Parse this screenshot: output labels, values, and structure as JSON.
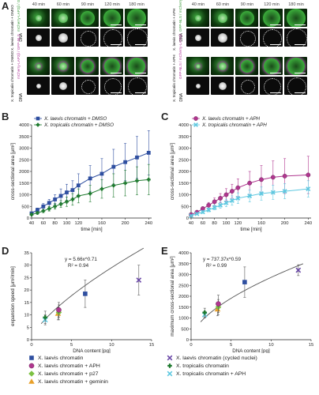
{
  "panel_labels": {
    "a": "A",
    "b": "B",
    "c": "C",
    "d": "D",
    "e": "E"
  },
  "panelA": {
    "time_labels": [
      "40 min",
      "60 min",
      "90 min",
      "120 min",
      "180 min"
    ],
    "left_rows": [
      {
        "label": "X. laevis chromatin + DMSO",
        "channels": "mCherry-LAP2β / GFP-NLS"
      },
      {
        "label": "X. tropicalis chromatin + DMSO",
        "channels": "mCherry-LAP2β / GFP-NLS"
      }
    ],
    "right_rows": [
      {
        "label": "X. laevis chromatin + APH",
        "channels": "GFP-NLS / mCherry-LAP2β"
      },
      {
        "label": "X. tropicalis chromatin + APH",
        "channels": "GFP-NLS / mCherry-LAP2β"
      }
    ],
    "dna_label": "DNA"
  },
  "chart_data": [
    {
      "id": "B",
      "type": "line",
      "xlabel": "time [min]",
      "ylabel": "cross-sectional area [μm²]",
      "xlim": [
        40,
        245
      ],
      "ylim": [
        0,
        4000
      ],
      "xticks": [
        40,
        60,
        80,
        100,
        120,
        160,
        200,
        240
      ],
      "yticks": [
        0,
        500,
        1000,
        1500,
        2000,
        2500,
        3000,
        3500,
        4000
      ],
      "series": [
        {
          "name": "X. laevis chromatin + DMSO",
          "color": "#2f4fa0",
          "marker": "square",
          "x": [
            40,
            50,
            60,
            70,
            80,
            90,
            100,
            110,
            120,
            140,
            160,
            180,
            200,
            220,
            240
          ],
          "y": [
            200,
            350,
            500,
            650,
            800,
            950,
            1100,
            1200,
            1400,
            1700,
            1900,
            2200,
            2400,
            2600,
            2800
          ],
          "err": [
            60,
            80,
            120,
            150,
            200,
            300,
            350,
            400,
            500,
            550,
            650,
            750,
            800,
            900,
            950
          ]
        },
        {
          "name": "X. tropicalis chromatin + DMSO",
          "color": "#1f7a2f",
          "marker": "cross",
          "x": [
            40,
            50,
            60,
            70,
            80,
            90,
            100,
            110,
            120,
            140,
            160,
            180,
            200,
            220,
            240
          ],
          "y": [
            150,
            220,
            300,
            400,
            500,
            600,
            700,
            800,
            950,
            1050,
            1250,
            1400,
            1500,
            1600,
            1650
          ],
          "err": [
            40,
            50,
            70,
            100,
            120,
            150,
            200,
            250,
            300,
            350,
            400,
            500,
            550,
            600,
            650
          ]
        }
      ]
    },
    {
      "id": "C",
      "type": "line",
      "xlabel": "time [min]",
      "ylabel": "cross-sectional area [μm²]",
      "xlim": [
        40,
        245
      ],
      "ylim": [
        0,
        4000
      ],
      "xticks": [
        40,
        60,
        80,
        100,
        120,
        160,
        200,
        240
      ],
      "yticks": [
        0,
        500,
        1000,
        1500,
        2000,
        2500,
        3000,
        3500,
        4000
      ],
      "series": [
        {
          "name": "X. laevis chromatin + APH",
          "color": "#b0368f",
          "marker": "circle",
          "x": [
            40,
            50,
            60,
            70,
            80,
            90,
            100,
            110,
            120,
            140,
            160,
            180,
            200,
            240
          ],
          "y": [
            150,
            250,
            400,
            550,
            700,
            850,
            1000,
            1150,
            1300,
            1500,
            1650,
            1750,
            1800,
            1850
          ],
          "err": [
            40,
            60,
            90,
            120,
            160,
            200,
            260,
            300,
            380,
            500,
            600,
            700,
            750,
            800
          ]
        },
        {
          "name": "X. tropicalis chromatin + APH",
          "color": "#5ec8e0",
          "marker": "x",
          "x": [
            40,
            50,
            60,
            70,
            80,
            90,
            100,
            110,
            120,
            140,
            160,
            180,
            200,
            240
          ],
          "y": [
            100,
            180,
            260,
            350,
            450,
            550,
            650,
            750,
            850,
            950,
            1050,
            1100,
            1150,
            1250
          ],
          "err": [
            30,
            40,
            60,
            80,
            100,
            130,
            160,
            200,
            230,
            260,
            280,
            300,
            320,
            350
          ]
        }
      ]
    },
    {
      "id": "D",
      "type": "scatter",
      "xlabel": "DNA content [pg]",
      "ylabel": "expansion speed [μm²/min]",
      "xlim": [
        0,
        15
      ],
      "ylim": [
        0,
        35
      ],
      "xticks": [
        0,
        5,
        10,
        15
      ],
      "yticks": [
        0,
        5,
        10,
        15,
        20,
        25,
        30,
        35
      ],
      "equation": "y = 5.66x^0.71",
      "r2": "R² = 0.94",
      "fit": {
        "a": 5.66,
        "b": 0.71
      },
      "points": [
        {
          "series": "X. tropicalis chromatin + APH",
          "x": 1.7,
          "y": 8.0,
          "err": 2.0,
          "marker": "x",
          "color": "#5ec8e0"
        },
        {
          "series": "X. tropicalis chromatin",
          "x": 1.7,
          "y": 9.0,
          "err": 2.5,
          "marker": "cross",
          "color": "#1f7a2f"
        },
        {
          "series": "X. laevis chromatin + geminin",
          "x": 3.3,
          "y": 10.5,
          "err": 2.5,
          "marker": "triangle",
          "color": "#e8a02a"
        },
        {
          "series": "X. laevis chromatin + p27",
          "x": 3.4,
          "y": 11.0,
          "err": 3.0,
          "marker": "diamond",
          "color": "#7cc142"
        },
        {
          "series": "X. laevis chromatin + APH",
          "x": 3.4,
          "y": 12.0,
          "err": 3.0,
          "marker": "circle",
          "color": "#b0368f"
        },
        {
          "series": "X. laevis chromatin",
          "x": 6.7,
          "y": 18.5,
          "err": 5.5,
          "marker": "square",
          "color": "#2f4fa0"
        },
        {
          "series": "X. laevis chromatin (cycled nuclei)",
          "x": 13.4,
          "y": 24.0,
          "err": 6.0,
          "marker": "x",
          "color": "#6b49a8"
        }
      ]
    },
    {
      "id": "E",
      "type": "scatter",
      "xlabel": "DNA content [pg]",
      "ylabel": "maximum cross-sectional area [μm²]",
      "xlim": [
        0,
        15
      ],
      "ylim": [
        0,
        4000
      ],
      "xticks": [
        0,
        5,
        10,
        15
      ],
      "yticks": [
        0,
        500,
        1000,
        1500,
        2000,
        2500,
        3000,
        3500,
        4000
      ],
      "equation": "y = 737.37x^0.59",
      "r2": "R² = 0.99",
      "fit": {
        "a": 737.37,
        "b": 0.59
      },
      "points": [
        {
          "series": "X. tropicalis chromatin + APH",
          "x": 1.7,
          "y": 1150,
          "err": 150,
          "marker": "x",
          "color": "#5ec8e0"
        },
        {
          "series": "X. tropicalis chromatin",
          "x": 1.7,
          "y": 1250,
          "err": 200,
          "marker": "cross",
          "color": "#1f7a2f"
        },
        {
          "series": "X. laevis chromatin + geminin",
          "x": 3.3,
          "y": 1400,
          "err": 300,
          "marker": "triangle",
          "color": "#e8a02a"
        },
        {
          "series": "X. laevis chromatin + p27",
          "x": 3.4,
          "y": 1500,
          "err": 350,
          "marker": "diamond",
          "color": "#7cc142"
        },
        {
          "series": "X. laevis chromatin + APH",
          "x": 3.4,
          "y": 1650,
          "err": 400,
          "marker": "circle",
          "color": "#b0368f"
        },
        {
          "series": "X. laevis chromatin",
          "x": 6.7,
          "y": 2650,
          "err": 700,
          "marker": "square",
          "color": "#2f4fa0"
        },
        {
          "series": "X. laevis chromatin (cycled nuclei)",
          "x": 13.4,
          "y": 3200,
          "err": 250,
          "marker": "x",
          "color": "#6b49a8"
        }
      ]
    }
  ],
  "bottom_legend": [
    {
      "label": "X. laevis chromatin",
      "marker": "square",
      "color": "#2f4fa0"
    },
    {
      "label": "X. laevis chromatin (cycled nuclei)",
      "marker": "x",
      "color": "#6b49a8"
    },
    {
      "label": "X. laevis chromatin + APH",
      "marker": "circle",
      "color": "#b0368f"
    },
    {
      "label": "X. tropicalis chromatin",
      "marker": "cross",
      "color": "#1f7a2f"
    },
    {
      "label": "X. laevis chromatin + p27",
      "marker": "diamond",
      "color": "#7cc142"
    },
    {
      "label": "X. tropicalis chromatin + APH",
      "marker": "x",
      "color": "#5ec8e0"
    },
    {
      "label": "X. laevis chromatin + geminin",
      "marker": "triangle",
      "color": "#e8a02a"
    }
  ]
}
